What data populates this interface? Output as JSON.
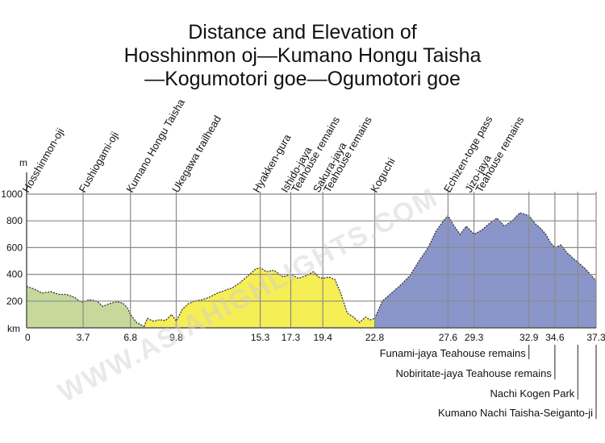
{
  "title": {
    "lines": [
      "Distance and Elevation of",
      "Hosshinmon oj—Kumano Hongu Taisha",
      "—Kogumotori goe—Ogumotori goe"
    ]
  },
  "watermark": "WWW.ASIAHIGHLIGHTS.COM",
  "chart_data": {
    "type": "area",
    "ylabel": "m",
    "xlabel": "km",
    "xlim": [
      0,
      37.3
    ],
    "ylim": [
      0,
      1000
    ],
    "yticks": [
      0,
      200,
      400,
      600,
      800,
      1000
    ],
    "ytick_labels": [
      "",
      "200",
      "400",
      "600",
      "800",
      "1000"
    ],
    "xticks": [
      0,
      3.7,
      6.8,
      9.8,
      15.3,
      17.3,
      19.4,
      22.8,
      27.6,
      29.3,
      32.9,
      34.6,
      37.3
    ],
    "xtick_labels": [
      "0",
      "3.7",
      "6.8",
      "9.8",
      "15.3",
      "17.3",
      "19.4",
      "22.8",
      "27.6",
      "29.3",
      "32.9",
      "34.6",
      "37.3"
    ],
    "grid": true,
    "colors": {
      "green": "#c6d99b",
      "yellow": "#f6ee55",
      "blue": "#8a96c9",
      "line": "#333333"
    },
    "series": [
      {
        "color": "#c6d99b",
        "x": [
          0,
          0.5,
          1.0,
          1.6,
          2.1,
          2.6,
          3.1,
          3.6,
          4.1,
          4.6,
          5.0,
          5.4,
          5.9,
          6.3,
          6.6,
          6.8,
          7.2,
          7.7
        ],
        "y": [
          310,
          290,
          260,
          270,
          250,
          250,
          230,
          190,
          210,
          200,
          160,
          180,
          195,
          185,
          150,
          100,
          40,
          10
        ]
      },
      {
        "color": "#f6ee55",
        "x": [
          7.7,
          7.9,
          8.3,
          8.7,
          9.1,
          9.5,
          9.8,
          10.2,
          10.6,
          11.0,
          11.5,
          12.0,
          12.5,
          13.0,
          13.5,
          14.0,
          14.5,
          15.0,
          15.3,
          15.7,
          16.2,
          16.8,
          17.3,
          17.8,
          18.3,
          18.8,
          19.1,
          19.4,
          19.8,
          20.2,
          20.6,
          21.0,
          21.4,
          21.8,
          22.2,
          22.5,
          22.8
        ],
        "y": [
          10,
          70,
          50,
          60,
          55,
          100,
          50,
          140,
          180,
          200,
          210,
          230,
          260,
          280,
          300,
          340,
          390,
          440,
          450,
          420,
          430,
          380,
          400,
          370,
          390,
          420,
          380,
          370,
          380,
          360,
          250,
          110,
          80,
          40,
          80,
          60,
          70
        ]
      },
      {
        "color": "#8a96c9",
        "x": [
          22.8,
          23.3,
          23.9,
          24.5,
          25.1,
          25.7,
          26.3,
          26.8,
          27.3,
          27.6,
          28.0,
          28.4,
          28.8,
          29.3,
          29.8,
          30.3,
          30.8,
          31.3,
          31.8,
          32.3,
          32.9,
          33.3,
          33.7,
          34.0,
          34.3,
          34.6,
          35.0,
          35.4,
          35.8,
          36.2,
          36.6,
          37.0,
          37.3
        ],
        "y": [
          70,
          200,
          260,
          320,
          390,
          500,
          600,
          720,
          800,
          840,
          760,
          700,
          760,
          700,
          730,
          780,
          820,
          760,
          800,
          860,
          840,
          780,
          740,
          700,
          640,
          600,
          620,
          560,
          520,
          480,
          440,
          390,
          350
        ]
      }
    ],
    "waypoints_top": [
      {
        "label": "Hosshinmon-oji",
        "km": 0
      },
      {
        "label": "Fushiogami-oji",
        "km": 3.7
      },
      {
        "label": "Kumano Hongu Taisha",
        "km": 6.8
      },
      {
        "label": "Ukegawa trailhead",
        "km": 9.8
      },
      {
        "label": "Hyakken-gura",
        "km": 15.3
      },
      {
        "label": "Ishido-jaya",
        "km": 17.3
      },
      {
        "label": "Teahouse remains",
        "km": 17.3
      },
      {
        "label": "Sakura-jaya",
        "km": 19.4
      },
      {
        "label": "Teahouse remains",
        "km": 19.4
      },
      {
        "label": "Koguchi",
        "km": 22.8
      },
      {
        "label": "Echizen-toge pass",
        "km": 27.6
      },
      {
        "label": "Jizo-jaya",
        "km": 29.3
      },
      {
        "label": "Teahouse remains",
        "km": 29.3
      }
    ],
    "waypoints_bottom": [
      {
        "label": "Funami-jaya Teahouse remains",
        "km": 32.9
      },
      {
        "label": "Nobiritate-jaya Teahouse remains",
        "km": 34.6
      },
      {
        "label": "Nachi Kogen Park",
        "km": 36.1
      },
      {
        "label": "Kumano Nachi Taisha-Seiganto-ji",
        "km": 37.3
      }
    ]
  }
}
